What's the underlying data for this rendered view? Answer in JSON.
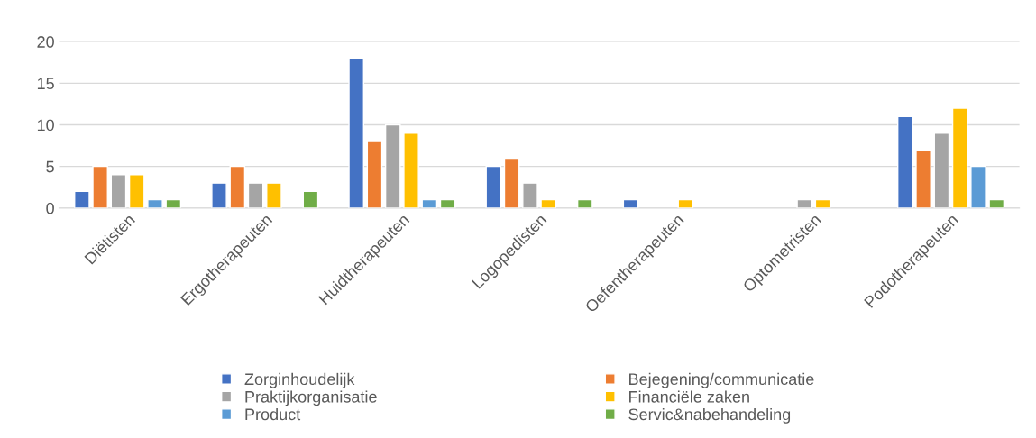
{
  "chart_data": {
    "type": "bar",
    "categories": [
      "Diëtisten",
      "Ergotherapeuten",
      "Huidtherapeuten",
      "Logopedisten",
      "Oefentherapeuten",
      "Optometristen",
      "Podotherapeuten"
    ],
    "series": [
      {
        "name": "Zorginhoudelijk",
        "color": "#4472c4",
        "values": [
          2,
          3,
          18,
          5,
          1,
          null,
          11
        ]
      },
      {
        "name": "Bejegening/communicatie",
        "color": "#ed7d31",
        "values": [
          5,
          5,
          8,
          6,
          null,
          null,
          7
        ]
      },
      {
        "name": "Praktijkorganisatie",
        "color": "#a5a5a5",
        "values": [
          4,
          3,
          10,
          3,
          null,
          1,
          9
        ]
      },
      {
        "name": "Financiële zaken",
        "color": "#ffc000",
        "values": [
          4,
          3,
          9,
          1,
          1,
          1,
          12
        ]
      },
      {
        "name": "Product",
        "color": "#5b9bd5",
        "values": [
          1,
          null,
          1,
          null,
          null,
          null,
          5
        ]
      },
      {
        "name": "Servic&nabehandeling",
        "color": "#70ad47",
        "values": [
          1,
          2,
          1,
          1,
          null,
          null,
          1
        ]
      }
    ],
    "ylim": [
      0,
      20
    ],
    "yticks": [
      0,
      5,
      10,
      15,
      20
    ],
    "grid": "y",
    "legend": "bottom"
  }
}
